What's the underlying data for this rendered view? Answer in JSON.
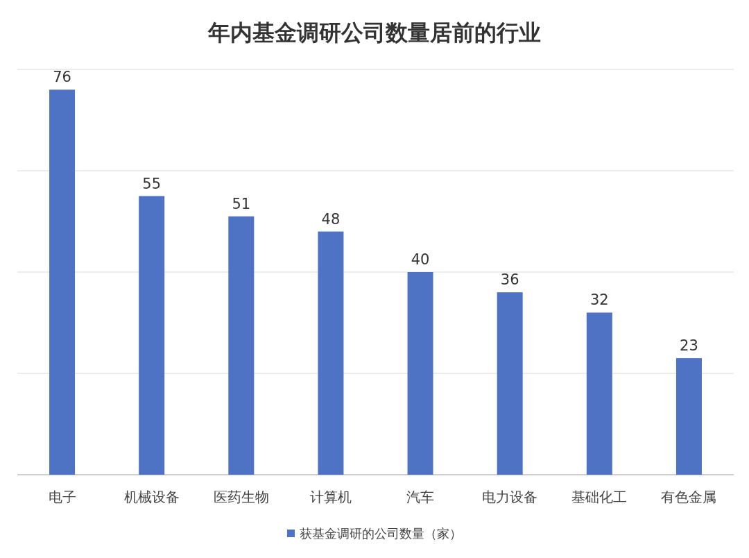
{
  "chart_data": {
    "type": "bar",
    "title": "年内基金调研公司数量居前的行业",
    "categories": [
      "电子",
      "机械设备",
      "医药生物",
      "计算机",
      "汽车",
      "电力设备",
      "基础化工",
      "有色金属"
    ],
    "series": [
      {
        "name": "获基金调研的公司数量（家）",
        "color": "#4e72c4",
        "values": [
          76,
          55,
          51,
          48,
          40,
          36,
          32,
          23
        ]
      }
    ],
    "ylim": [
      0,
      80
    ],
    "yticks": [
      {
        "value": 0,
        "label": null
      },
      {
        "value": 20,
        "label": null
      },
      {
        "value": 40,
        "label": null
      },
      {
        "value": 60,
        "label": null
      },
      {
        "value": 80,
        "label": null
      }
    ],
    "tick_labels": "x",
    "grid": "y",
    "data_labels": true,
    "legend": "bottom"
  }
}
